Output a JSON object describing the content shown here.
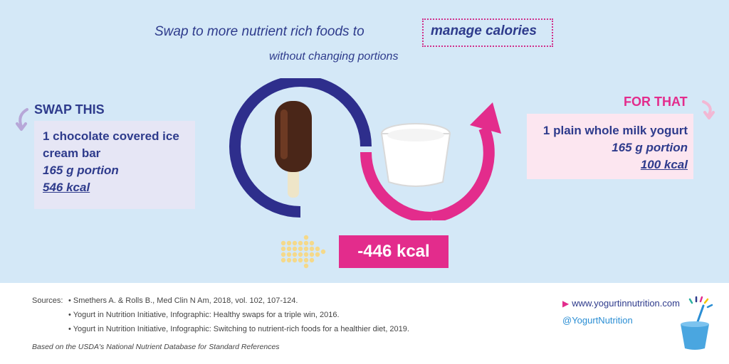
{
  "headline": {
    "prefix": "Swap to more nutrient rich foods to",
    "highlight": "manage calories",
    "subline": "without changing portions"
  },
  "swap": {
    "title": "SWAP THIS",
    "item": "1 chocolate covered ice cream bar",
    "portion": "165 g portion",
    "kcal": "546 kcal"
  },
  "for": {
    "title": "FOR THAT",
    "item": "1 plain whole milk yogurt",
    "portion": "165 g portion",
    "kcal": "100 kcal"
  },
  "difference": "-446 kcal",
  "sources": {
    "label": "Sources:",
    "items": [
      "• Smethers A. & Rolls B., Med Clin N Am, 2018, vol. 102, 107-124.",
      "• Yogurt in Nutrition Initiative, Infographic: Healthy swaps for a triple win, 2016.",
      "• Yogurt in Nutrition Initiative, Infographic: Switching to nutrient-rich foods for a healthier diet, 2019."
    ],
    "basis": "Based on the USDA's National Nutrient Database for Standard References"
  },
  "footer": {
    "website": "www.yogurtinnutrition.com",
    "handle": "@YogurtNutrition"
  },
  "colors": {
    "background": "#d4e8f7",
    "navy": "#2e3b8c",
    "pink": "#e32c8c",
    "lavender_box": "#e6e6f5",
    "pink_box": "#fce6f0",
    "dots": "#f5d98a",
    "link_blue": "#2a8ed4"
  }
}
